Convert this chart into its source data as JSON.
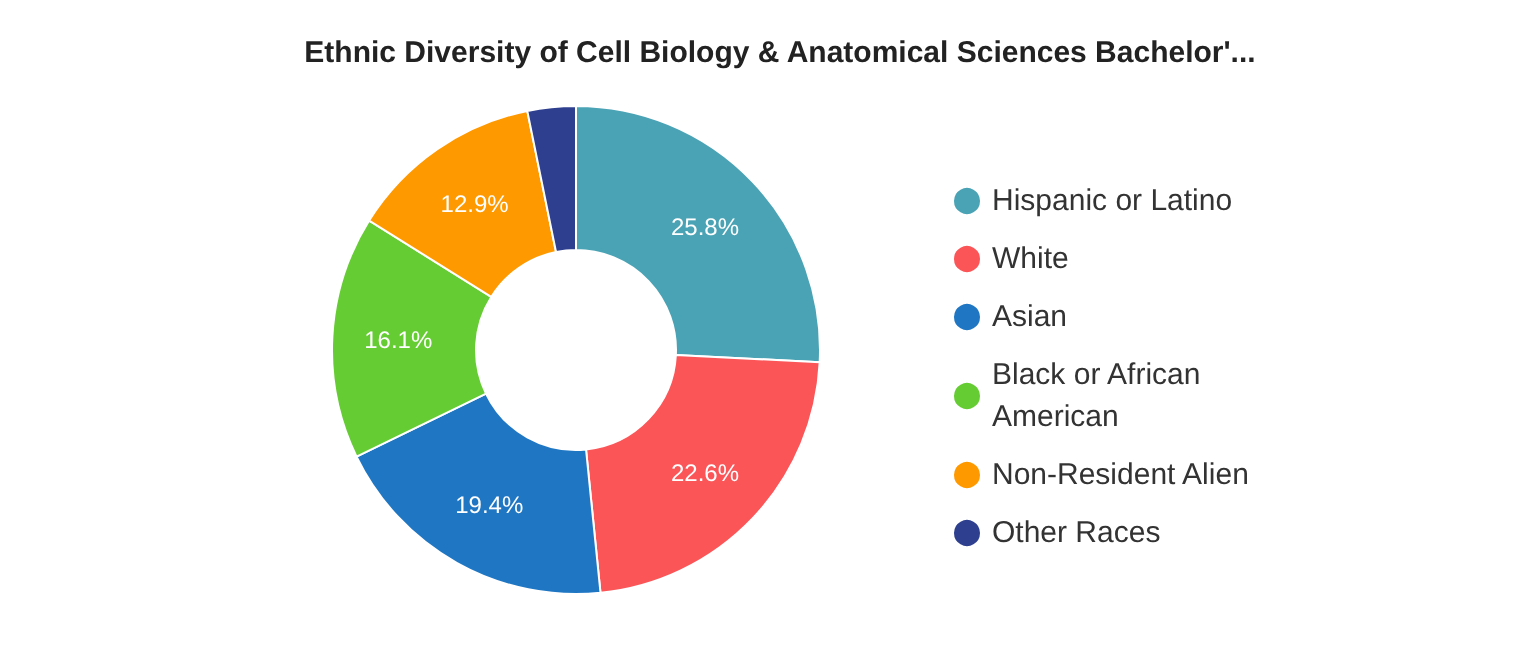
{
  "chart_data": {
    "type": "donut",
    "title": "Ethnic Diversity of Cell Biology & Anatomical Sciences Bachelor'...",
    "categories": [
      "Hispanic or Latino",
      "White",
      "Asian",
      "Black or African American",
      "Non-Resident Alien",
      "Other Races"
    ],
    "values": [
      25.8,
      22.6,
      19.4,
      16.1,
      12.9,
      3.2
    ],
    "colors": [
      "#4aa3b5",
      "#fc5558",
      "#1f77c4",
      "#66cc33",
      "#ff9900",
      "#2e3f8f"
    ],
    "value_labels": [
      "25.8%",
      "22.6%",
      "19.4%",
      "16.1%",
      "12.9%",
      null
    ],
    "legend": "right"
  }
}
